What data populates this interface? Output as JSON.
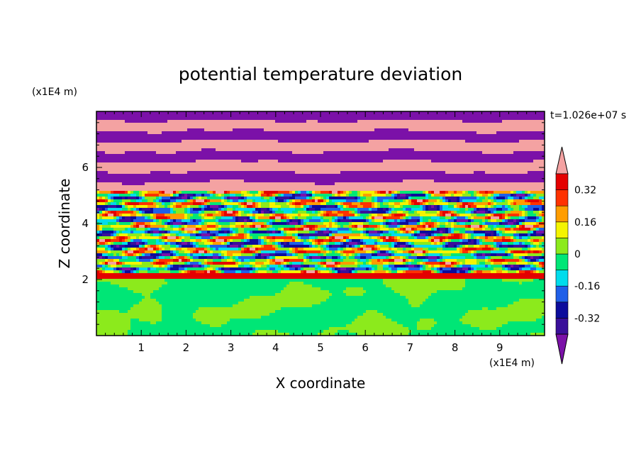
{
  "chart_data": {
    "type": "heatmap",
    "title": "potential temperature deviation",
    "xlabel": "X coordinate",
    "ylabel": "Z coordinate",
    "x_unit": "(x1E4 m)",
    "y_unit": "(x1E4 m)",
    "time_label": "t=1.026e+07 s",
    "xlim": [
      0,
      10
    ],
    "ylim": [
      0,
      8
    ],
    "x_ticks": [
      1,
      2,
      3,
      4,
      5,
      6,
      7,
      8,
      9
    ],
    "y_ticks": [
      2,
      4,
      6
    ],
    "colorbar": {
      "levels": [
        -0.4,
        -0.32,
        -0.24,
        -0.16,
        -0.08,
        0,
        0.08,
        0.16,
        0.24,
        0.32,
        0.4
      ],
      "labeled_levels": [
        "0.32",
        "0.16",
        "0",
        "-0.16",
        "-0.32"
      ],
      "labeled_values": [
        0.32,
        0.16,
        0,
        -0.16,
        -0.32
      ],
      "colors": [
        "#7b11a8",
        "#3a0f9a",
        "#0c0c9c",
        "#1f5fe8",
        "#00dcec",
        "#00e676",
        "#8cea1c",
        "#f4f400",
        "#ff9d00",
        "#ff3200",
        "#e40000",
        "#f4a2a2"
      ],
      "extend": "both"
    },
    "layers": [
      {
        "z_range": [
          0,
          2
        ],
        "pattern": "smooth mix of 0 and 0.08 (green shades)"
      },
      {
        "z_range": [
          2,
          5.2
        ],
        "pattern": "turbulent bands spanning -0.4 to 0.4"
      },
      {
        "z_range": [
          5.2,
          8
        ],
        "pattern": "alternating horizontal bands of below -0.4 and above 0.4"
      }
    ]
  }
}
